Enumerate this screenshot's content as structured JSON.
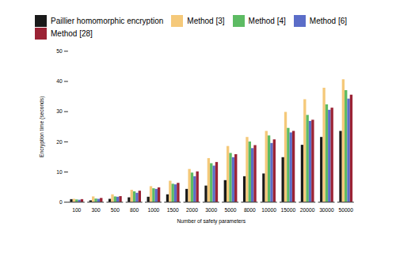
{
  "chart_data": {
    "type": "bar",
    "categories": [
      "100",
      "300",
      "500",
      "800",
      "1000",
      "1500",
      "2000",
      "3000",
      "5000",
      "8000",
      "10000",
      "15000",
      "20000",
      "30000",
      "50000"
    ],
    "series": [
      {
        "name": "Paillier homomorphic encryption",
        "color": "#1a1a1a",
        "values": [
          0.9,
          0.5,
          1.0,
          1.5,
          1.7,
          2.5,
          4.3,
          5.4,
          7.2,
          8.5,
          9.4,
          14.8,
          18.9,
          21.5,
          23.5
        ]
      },
      {
        "name": "Method [3]",
        "color": "#F5C97A",
        "values": [
          1.0,
          1.8,
          2.5,
          4.0,
          5.2,
          7.0,
          10.9,
          14.5,
          18.5,
          21.5,
          23.5,
          29.8,
          34.0,
          37.8,
          40.6
        ]
      },
      {
        "name": "Method [4]",
        "color": "#5DBB63",
        "values": [
          0.8,
          1.1,
          1.8,
          3.5,
          4.5,
          6.0,
          9.7,
          12.8,
          16.2,
          20.0,
          22.0,
          24.5,
          28.8,
          32.3,
          37.0
        ]
      },
      {
        "name": "Method [6]",
        "color": "#5B6DC8",
        "values": [
          0.7,
          1.0,
          1.7,
          3.0,
          4.3,
          5.8,
          8.5,
          12.0,
          14.8,
          17.8,
          19.5,
          23.0,
          26.8,
          30.5,
          34.2
        ]
      },
      {
        "name": "Method [28]",
        "color": "#9B2335",
        "values": [
          0.9,
          1.3,
          1.9,
          3.7,
          4.8,
          6.3,
          10.1,
          13.2,
          15.8,
          18.8,
          20.7,
          23.5,
          27.2,
          31.2,
          35.5
        ]
      }
    ],
    "xlabel": "Number of safety parameters",
    "ylabel": "Encryption time (seconds)",
    "ylim": [
      0,
      50
    ],
    "yticks": [
      0,
      10,
      20,
      30,
      40,
      50
    ],
    "grid": false,
    "legend": "top"
  }
}
